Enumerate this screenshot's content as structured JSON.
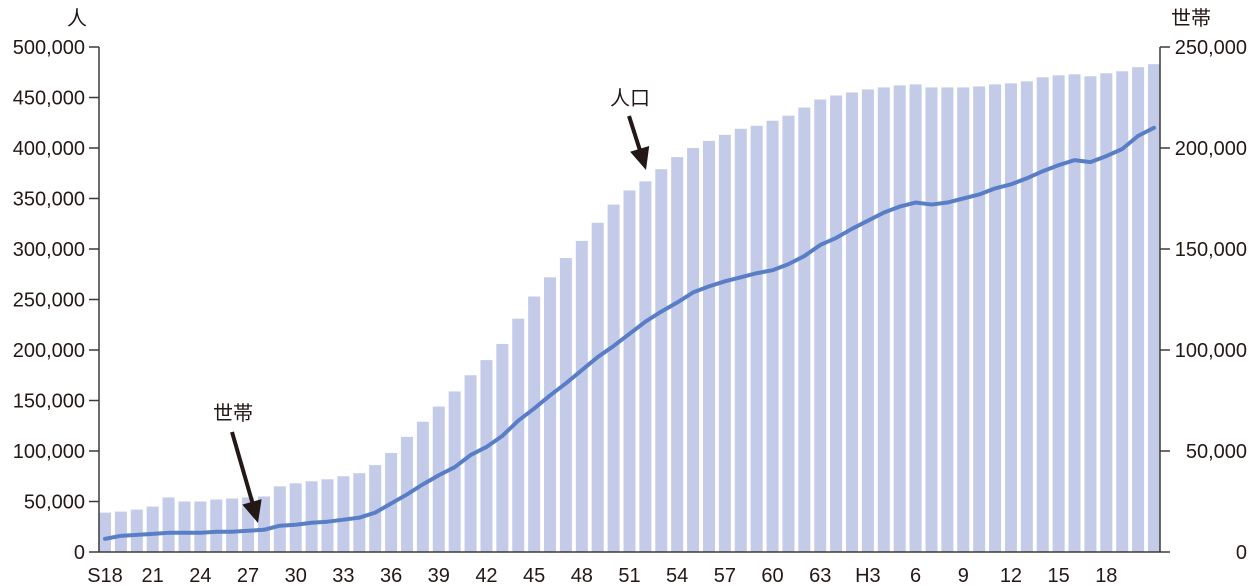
{
  "chart_data": {
    "type": "bar",
    "categories": [
      "S18",
      "",
      "",
      "21",
      "",
      "",
      "24",
      "",
      "",
      "27",
      "",
      "",
      "30",
      "",
      "",
      "33",
      "",
      "",
      "36",
      "",
      "",
      "39",
      "",
      "",
      "42",
      "",
      "",
      "45",
      "",
      "",
      "48",
      "",
      "",
      "51",
      "",
      "",
      "54",
      "",
      "",
      "57",
      "",
      "",
      "60",
      "",
      "",
      "63",
      "",
      "",
      "H3",
      "",
      "",
      "6",
      "",
      "",
      "9",
      "",
      "",
      "12",
      "",
      "",
      "15",
      "",
      "",
      "18",
      "",
      "",
      ""
    ],
    "series": [
      {
        "name": "人口",
        "type": "bar",
        "axis": "left",
        "values": [
          39000,
          40000,
          42000,
          45000,
          54000,
          50000,
          50000,
          52000,
          53000,
          54000,
          55000,
          65000,
          68000,
          70000,
          72000,
          75000,
          78000,
          86000,
          98000,
          114000,
          129000,
          144000,
          159000,
          175000,
          190000,
          206000,
          231000,
          253000,
          272000,
          291000,
          308000,
          326000,
          344000,
          358000,
          367000,
          379000,
          391000,
          400000,
          407000,
          413000,
          419000,
          422000,
          427000,
          432000,
          440000,
          448000,
          452000,
          455000,
          458000,
          460000,
          462000,
          463000,
          460000,
          460000,
          460000,
          461000,
          463000,
          464000,
          466000,
          470000,
          472000,
          473000,
          471000,
          474000,
          476000,
          480000,
          483000
        ]
      },
      {
        "name": "世帯",
        "type": "line",
        "axis": "right",
        "values": [
          6500,
          8000,
          8500,
          9000,
          9500,
          9500,
          9500,
          10000,
          10000,
          10500,
          11000,
          13000,
          13500,
          14500,
          15000,
          16000,
          17000,
          19500,
          24000,
          28500,
          33500,
          38000,
          42000,
          48000,
          52000,
          57500,
          65000,
          71000,
          77500,
          83500,
          90000,
          96500,
          102000,
          108000,
          114000,
          119000,
          123500,
          128500,
          131500,
          134000,
          136000,
          138000,
          139500,
          142500,
          146500,
          152000,
          155500,
          160000,
          164000,
          168000,
          171000,
          173000,
          172000,
          173000,
          175000,
          177000,
          180000,
          182000,
          185000,
          188500,
          191500,
          194000,
          193000,
          196000,
          199500,
          206000,
          210000
        ]
      }
    ],
    "ylabel": "人",
    "y2label": "世帯",
    "ylim": [
      0,
      500000
    ],
    "y2lim": [
      0,
      250000
    ],
    "yticks": [
      0,
      50000,
      100000,
      150000,
      200000,
      250000,
      300000,
      350000,
      400000,
      450000,
      500000
    ],
    "ytick_labels": [
      "0",
      "50,000",
      "100,000",
      "150,000",
      "200,000",
      "250,000",
      "300,000",
      "350,000",
      "400,000",
      "450,000",
      "500,000"
    ],
    "y2ticks": [
      0,
      50000,
      100000,
      150000,
      200000,
      250000
    ],
    "y2tick_labels": [
      "0",
      "50,000",
      "100,000",
      "150,000",
      "200,000",
      "250,000"
    ],
    "grid": false,
    "legend": "none",
    "colors": {
      "population_bar": "#c3cbe9",
      "households_line": "#5a7ec6",
      "axis": "#3a3a3a",
      "arrow": "#231815"
    }
  }
}
